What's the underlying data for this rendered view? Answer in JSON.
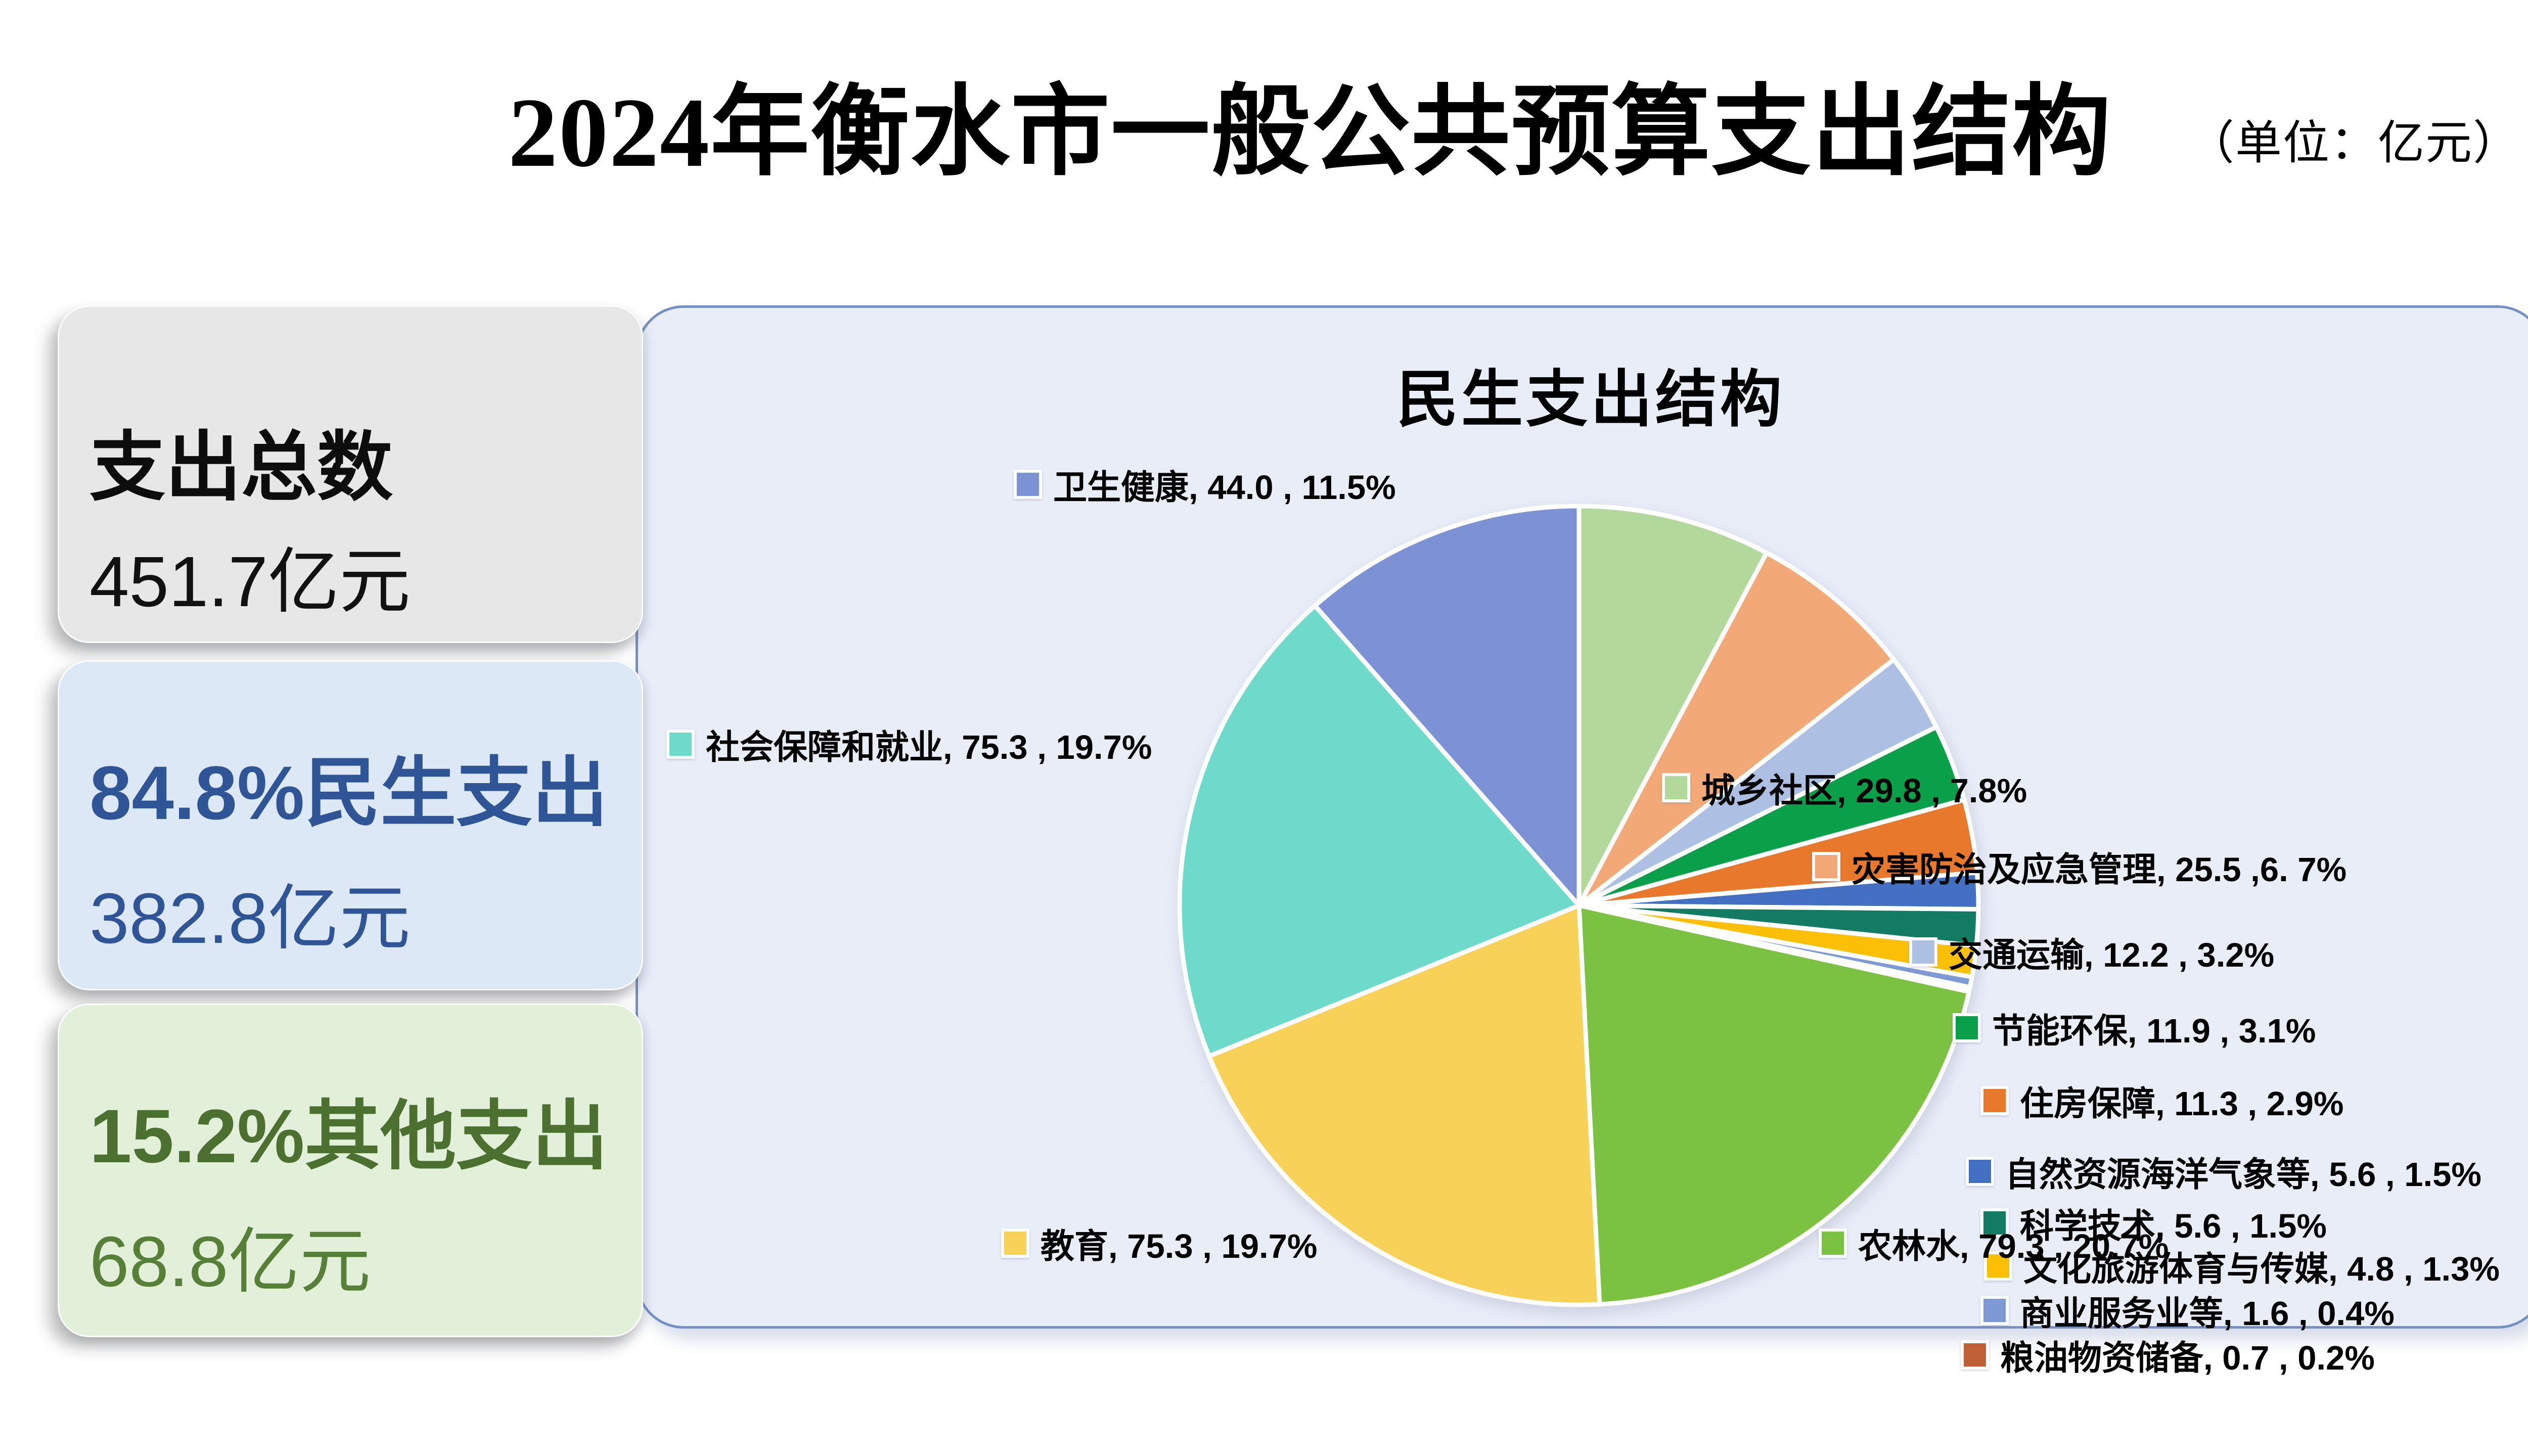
{
  "header": {
    "title": "2024年衡水市一般公共预算支出结构",
    "unit_note": "（单位：亿元）"
  },
  "summary_boxes": [
    {
      "title": "支出总数",
      "value": "451.7亿元"
    },
    {
      "title": "84.8%民生支出",
      "value": "382.8亿元"
    },
    {
      "title": "15.2%其他支出",
      "value": "68.8亿元"
    }
  ],
  "chart_data": {
    "type": "pie",
    "title": "民生支出结构",
    "unit": "亿元",
    "start_angle_deg": 0,
    "direction": "clockwise",
    "legend_position": "around",
    "series": [
      {
        "name": "城乡社区",
        "value": 29.8,
        "pct": "7.8%",
        "label": "城乡社区, 29.8 , 7.8%",
        "color": "#B3D89C"
      },
      {
        "name": "灾害防治及应急管理",
        "value": 25.5,
        "pct": "6.7%",
        "label": "灾害防治及应急管理, 25.5 ,6. 7%",
        "color": "#F2A977"
      },
      {
        "name": "交通运输",
        "value": 12.2,
        "pct": "3.2%",
        "label": "交通运输, 12.2 , 3.2%",
        "color": "#AEBFE4"
      },
      {
        "name": "节能环保",
        "value": 11.9,
        "pct": "3.1%",
        "label": "节能环保, 11.9 , 3.1%",
        "color": "#0AA04A"
      },
      {
        "name": "住房保障",
        "value": 11.3,
        "pct": "2.9%",
        "label": "住房保障, 11.3 , 2.9%",
        "color": "#E8782B"
      },
      {
        "name": "自然资源海洋气象等",
        "value": 5.6,
        "pct": "1.5%",
        "label": "自然资源海洋气象等, 5.6 , 1.5%",
        "color": "#4370C2"
      },
      {
        "name": "科学技术",
        "value": 5.6,
        "pct": "1.5%",
        "label": "科学技术, 5.6 , 1.5%",
        "color": "#137A64"
      },
      {
        "name": "文化旅游体育与传媒",
        "value": 4.8,
        "pct": "1.3%",
        "label": "文化旅游体育与传媒, 4.8 , 1.3%",
        "color": "#FBBF06"
      },
      {
        "name": "商业服务业等",
        "value": 1.6,
        "pct": "0.4%",
        "label": "商业服务业等, 1.6 , 0.4%",
        "color": "#7E9AD4"
      },
      {
        "name": "粮油物资储备",
        "value": 0.7,
        "pct": "0.2%",
        "label": "粮油物资储备, 0.7 , 0.2%",
        "color": "#C06038"
      },
      {
        "name": "农林水",
        "value": 79.3,
        "pct": "20.7%",
        "label": "农林水, 79.3 , 20.7%",
        "color": "#7CC242"
      },
      {
        "name": "教育",
        "value": 75.3,
        "pct": "19.7%",
        "label": "教育, 75.3 , 19.7%",
        "color": "#F8D158"
      },
      {
        "name": "社会保障和就业",
        "value": 75.3,
        "pct": "19.7%",
        "label": "社会保障和就业, 75.3 , 19.7%",
        "color": "#6EDACA"
      },
      {
        "name": "卫生健康",
        "value": 44.0,
        "pct": "11.5%",
        "label": "卫生健康, 44.0 , 11.5%",
        "color": "#7D92D4"
      }
    ]
  }
}
